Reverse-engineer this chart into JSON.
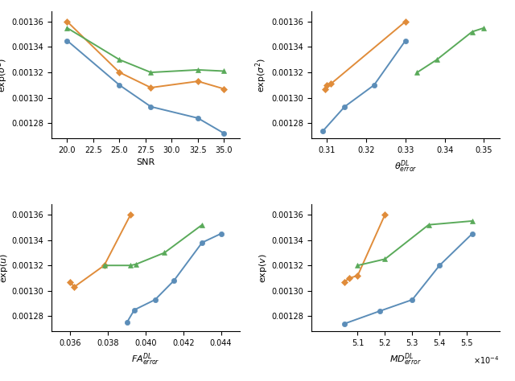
{
  "top_left": {
    "xlabel": "SNR",
    "ylabel": "exp($\\sigma^2$)",
    "blue": {
      "x": [
        20.0,
        25.0,
        28.0,
        32.5,
        35.0
      ],
      "y": [
        0.001345,
        0.00131,
        0.001293,
        0.001284,
        0.001272
      ]
    },
    "orange": {
      "x": [
        20.0,
        25.0,
        28.0,
        32.5,
        35.0
      ],
      "y": [
        0.00136,
        0.00132,
        0.001308,
        0.001313,
        0.001307
      ]
    },
    "green": {
      "x": [
        20.0,
        25.0,
        28.0,
        32.5,
        35.0
      ],
      "y": [
        0.001355,
        0.00133,
        0.00132,
        0.001322,
        0.001321
      ]
    },
    "xlim": [
      18.5,
      36.5
    ],
    "ylim": [
      0.001268,
      0.001368
    ],
    "xticks": [
      20.0,
      22.5,
      25.0,
      27.5,
      30.0,
      32.5,
      35.0
    ]
  },
  "top_right": {
    "xlabel": "$\\theta^{DL}_{error}$",
    "ylabel": "exp($\\sigma^2$)",
    "blue": {
      "x": [
        0.309,
        0.3145,
        0.322,
        0.33
      ],
      "y": [
        0.001274,
        0.001293,
        0.00131,
        0.001345
      ]
    },
    "orange": {
      "x": [
        0.3095,
        0.31,
        0.311,
        0.33
      ],
      "y": [
        0.001307,
        0.00131,
        0.001311,
        0.00136
      ]
    },
    "green": {
      "x": [
        0.333,
        0.338,
        0.347,
        0.35
      ],
      "y": [
        0.00132,
        0.00133,
        0.001352,
        0.001355
      ]
    },
    "xlim": [
      0.306,
      0.354
    ],
    "ylim": [
      0.001268,
      0.001368
    ],
    "xticks": [
      0.31,
      0.32,
      0.33,
      0.34,
      0.35
    ]
  },
  "bottom_left": {
    "xlabel": "$FA^{DL}_{error}$",
    "ylabel": "exp($u$)",
    "blue": {
      "x": [
        0.039,
        0.0394,
        0.0405,
        0.0415,
        0.043,
        0.044
      ],
      "y": [
        0.001275,
        0.001285,
        0.001293,
        0.001308,
        0.001338,
        0.001345
      ]
    },
    "orange": {
      "x": [
        0.036,
        0.0362,
        0.0378,
        0.0392
      ],
      "y": [
        0.001307,
        0.001303,
        0.00132,
        0.00136
      ]
    },
    "green": {
      "x": [
        0.0378,
        0.0392,
        0.0395,
        0.041,
        0.043
      ],
      "y": [
        0.00132,
        0.00132,
        0.001321,
        0.00133,
        0.001352
      ]
    },
    "xlim": [
      0.035,
      0.045
    ],
    "ylim": [
      0.001268,
      0.001368
    ],
    "xticks": [
      0.036,
      0.038,
      0.04,
      0.042,
      0.044
    ]
  },
  "bottom_right": {
    "xlabel": "$MD^{DL}_{error}$",
    "ylabel": "exp($v$)",
    "blue": {
      "x": [
        5.05,
        5.18,
        5.3,
        5.4,
        5.52
      ],
      "y": [
        0.001274,
        0.001284,
        0.001293,
        0.00132,
        0.001345
      ]
    },
    "orange": {
      "x": [
        5.05,
        5.07,
        5.1,
        5.2
      ],
      "y": [
        0.001307,
        0.00131,
        0.001312,
        0.00136
      ]
    },
    "green": {
      "x": [
        5.1,
        5.2,
        5.36,
        5.52
      ],
      "y": [
        0.00132,
        0.001325,
        0.001352,
        0.001355
      ]
    },
    "xlim": [
      4.93,
      5.62
    ],
    "ylim": [
      0.001268,
      0.001368
    ],
    "xticks": [
      5.1,
      5.2,
      5.3,
      5.4,
      5.5
    ],
    "xscale": "$\\times10^{-4}$"
  },
  "colors": {
    "blue": "#5b8db8",
    "orange": "#e08c3a",
    "green": "#5aaa5a"
  },
  "linewidth": 1.4,
  "markersize": 4.5,
  "yticks": [
    0.00128,
    0.0013,
    0.00132,
    0.00134,
    0.00136
  ]
}
